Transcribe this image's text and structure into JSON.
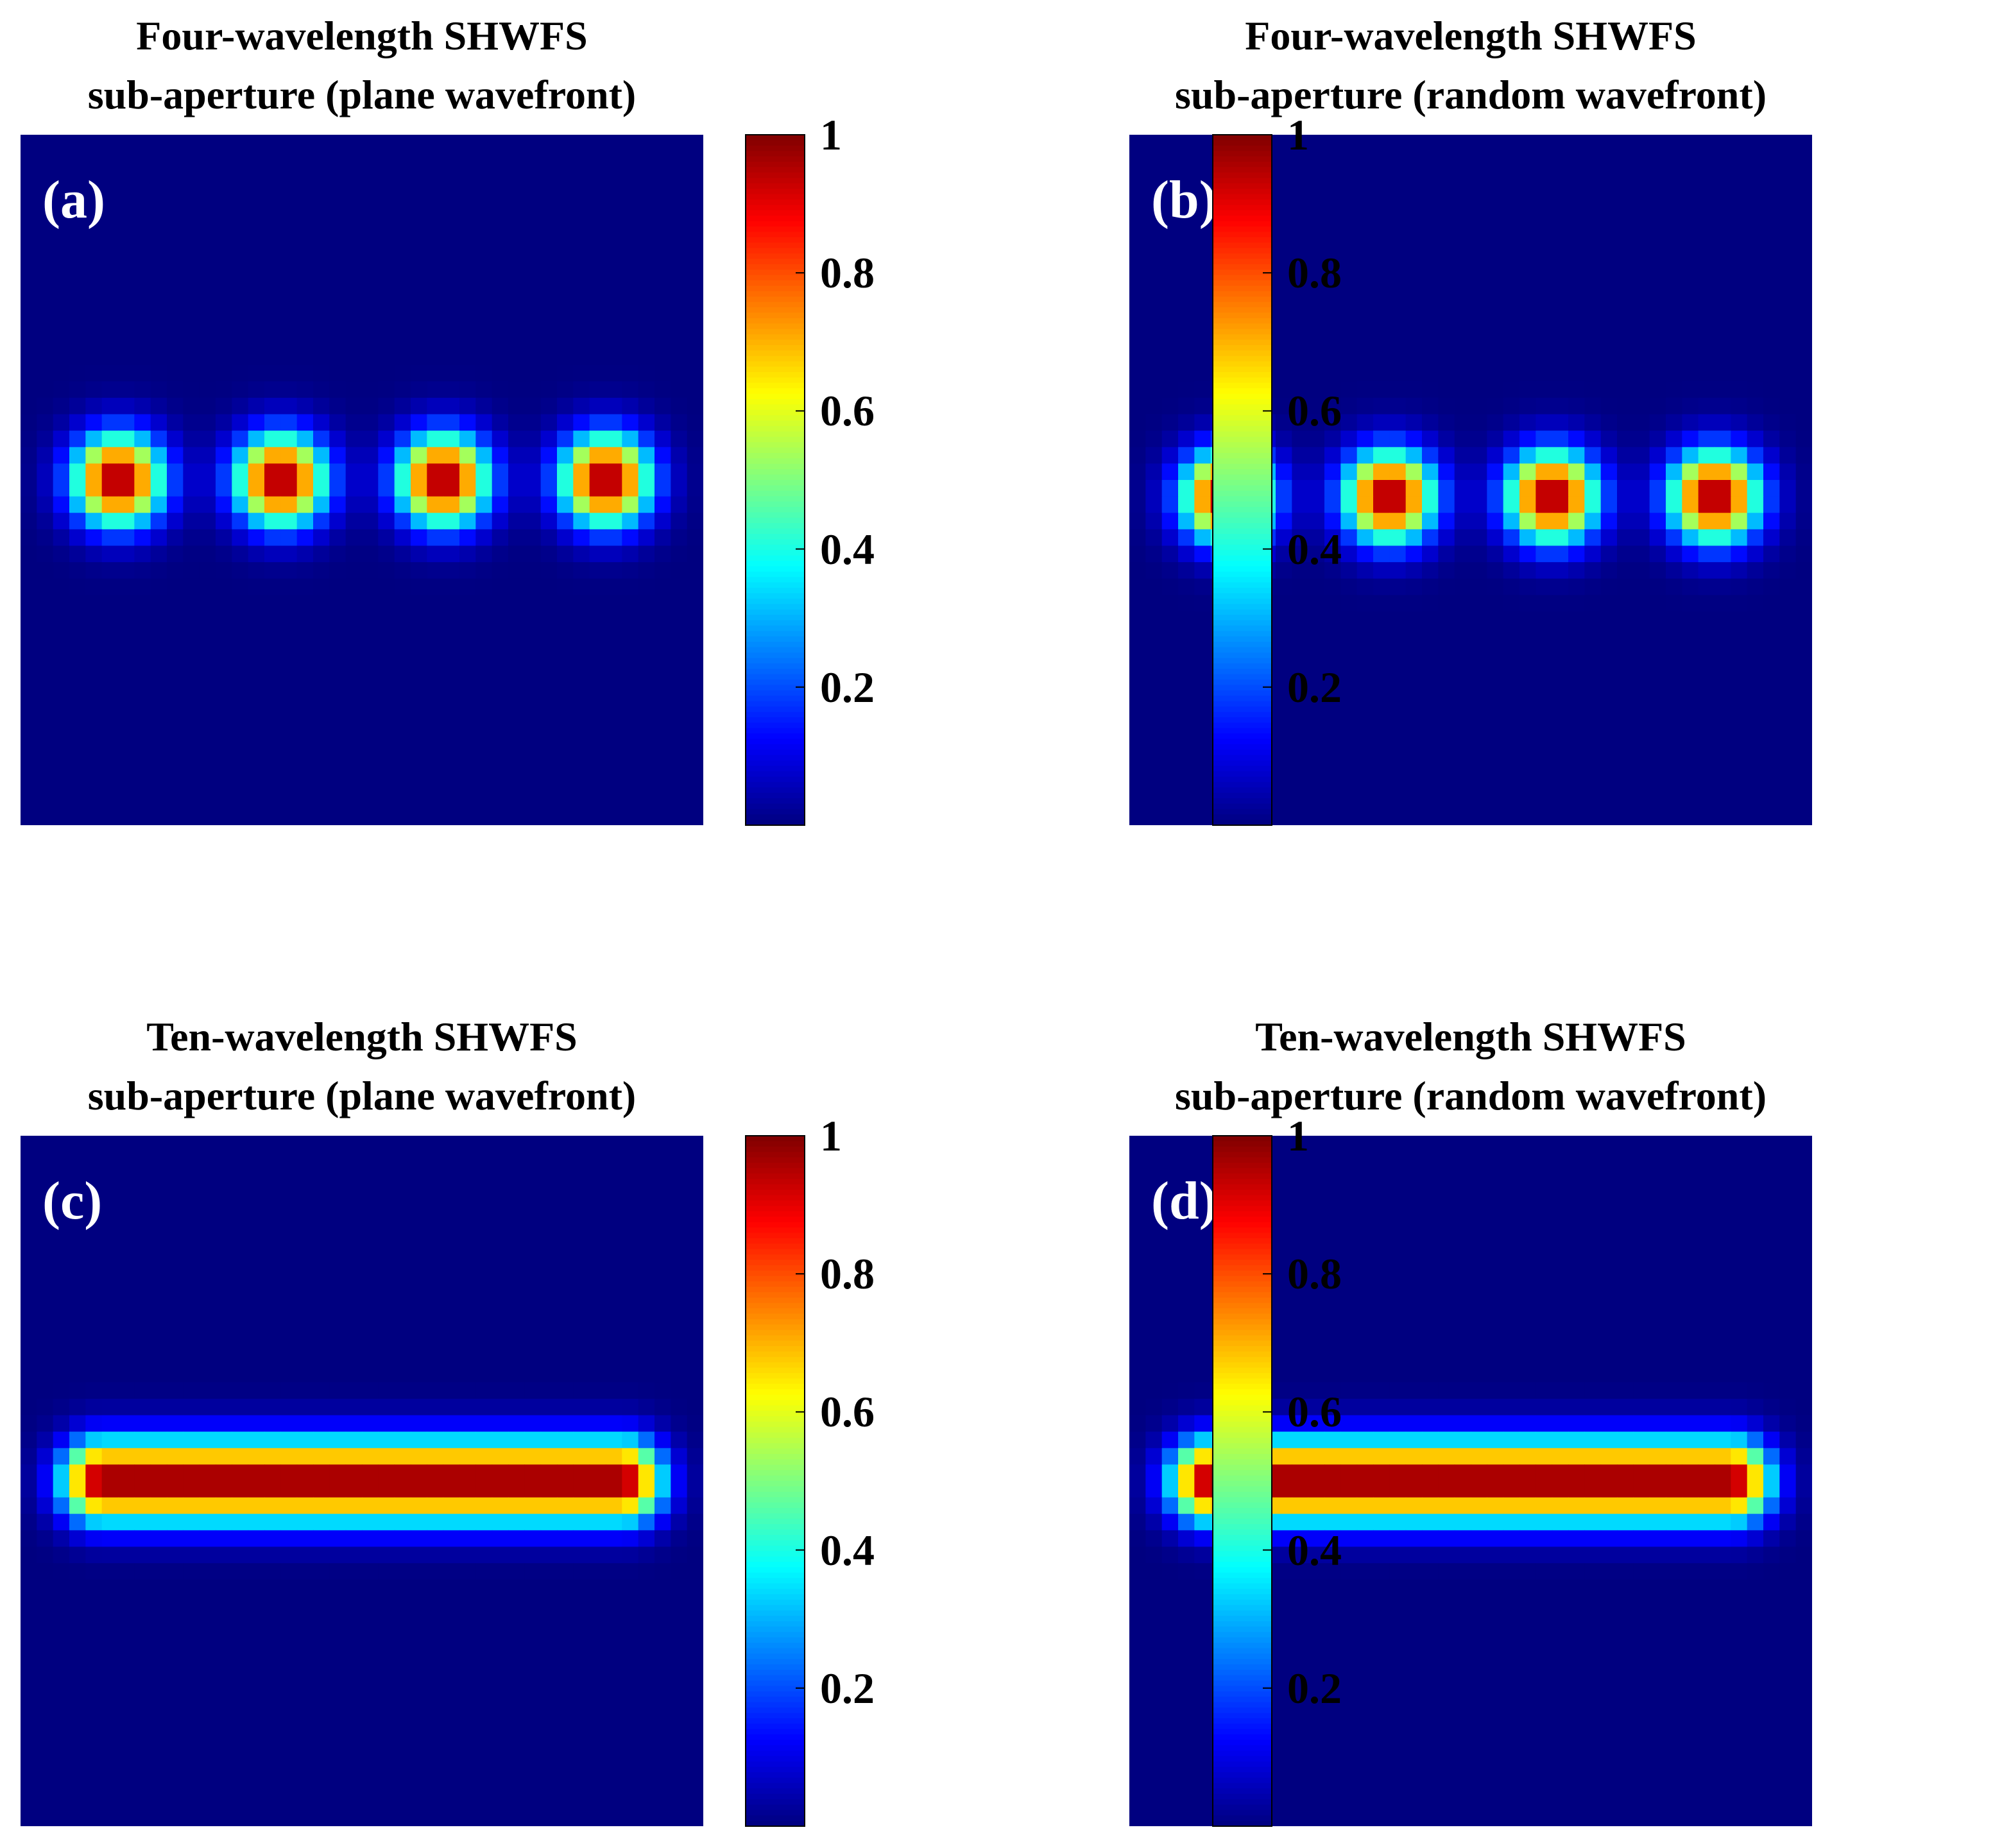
{
  "colors": {
    "colormap": "jet",
    "background": "#ffffff",
    "axes_frame": "#000000",
    "panel_label": "#ffffff"
  },
  "chart_data": [
    {
      "type": "heatmap",
      "panel_label": "(a)",
      "title": [
        "Four-wavelength SHWFS",
        "sub-aperture (plane wavefront)"
      ],
      "pattern": "spots",
      "grid": [
        42,
        42
      ],
      "spot_count": 4,
      "spot_centers_col": [
        5.5,
        15.5,
        25.5,
        35.5
      ],
      "spot_center_row": 20.5,
      "spot_sigma": 1.9,
      "peak_value": 1.0,
      "colorbar": {
        "clim": [
          0,
          1
        ],
        "ticks": [
          0.2,
          0.4,
          0.6,
          0.8,
          1
        ],
        "tick_labels": [
          "0.2",
          "0.4",
          "0.6",
          "0.8",
          "1"
        ]
      }
    },
    {
      "type": "heatmap",
      "panel_label": "(b)",
      "title": [
        "Four-wavelength SHWFS",
        "sub-aperture (random wavefront)"
      ],
      "pattern": "spots",
      "grid": [
        42,
        42
      ],
      "spot_count": 4,
      "spot_centers_col": [
        5.5,
        15.5,
        25.5,
        35.5
      ],
      "spot_center_row": 21.5,
      "spot_sigma": 1.9,
      "peak_value": 1.0,
      "colorbar": {
        "clim": [
          0,
          1
        ],
        "ticks": [
          0.2,
          0.4,
          0.6,
          0.8,
          1
        ],
        "tick_labels": [
          "0.2",
          "0.4",
          "0.6",
          "0.8",
          "1"
        ]
      }
    },
    {
      "type": "heatmap",
      "panel_label": "(c)",
      "title": [
        "Ten-wavelength SHWFS",
        "sub-aperture (plane wavefront)"
      ],
      "pattern": "bar",
      "grid": [
        42,
        42
      ],
      "bar_cols": [
        4.5,
        36.5
      ],
      "bar_center_row": 20.5,
      "bar_sigma": 1.7,
      "peak_value": 1.0,
      "colorbar": {
        "clim": [
          0,
          1
        ],
        "ticks": [
          0.2,
          0.4,
          0.6,
          0.8,
          1
        ],
        "tick_labels": [
          "0.2",
          "0.4",
          "0.6",
          "0.8",
          "1"
        ]
      }
    },
    {
      "type": "heatmap",
      "panel_label": "(d)",
      "title": [
        "Ten-wavelength SHWFS",
        "sub-aperture (random wavefront)"
      ],
      "pattern": "bar",
      "grid": [
        42,
        42
      ],
      "bar_cols": [
        4.5,
        36.5
      ],
      "bar_center_row": 20.5,
      "bar_sigma": 1.7,
      "peak_value": 1.0,
      "colorbar": {
        "clim": [
          0,
          1
        ],
        "ticks": [
          0.2,
          0.4,
          0.6,
          0.8,
          1
        ],
        "tick_labels": [
          "0.2",
          "0.4",
          "0.6",
          "0.8",
          "1"
        ]
      }
    }
  ]
}
